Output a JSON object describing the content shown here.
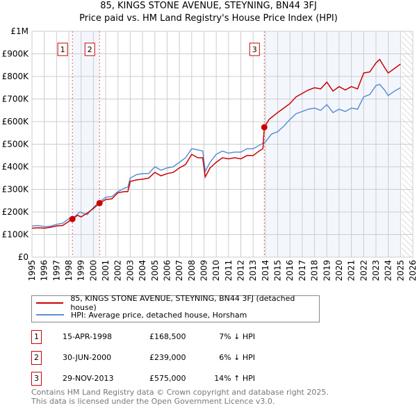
{
  "chart_data": {
    "type": "line",
    "title": "85, KINGS STONE AVENUE, STEYNING, BN44 3FJ",
    "subtitle": "Price paid vs. HM Land Registry's House Price Index (HPI)",
    "xlim": [
      1995,
      2026
    ],
    "ylim": [
      0,
      1000000
    ],
    "x_ticks": [
      "1995",
      "1996",
      "1997",
      "1998",
      "1999",
      "2000",
      "2001",
      "2002",
      "2003",
      "2004",
      "2005",
      "2006",
      "2007",
      "2008",
      "2009",
      "2010",
      "2011",
      "2012",
      "2013",
      "2014",
      "2015",
      "2016",
      "2017",
      "2018",
      "2019",
      "2020",
      "2021",
      "2022",
      "2023",
      "2024",
      "2025",
      "2026"
    ],
    "y_ticks": [
      {
        "v": 0,
        "l": "£0"
      },
      {
        "v": 100000,
        "l": "£100K"
      },
      {
        "v": 200000,
        "l": "£200K"
      },
      {
        "v": 300000,
        "l": "£300K"
      },
      {
        "v": 400000,
        "l": "£400K"
      },
      {
        "v": 500000,
        "l": "£500K"
      },
      {
        "v": 600000,
        "l": "£600K"
      },
      {
        "v": 700000,
        "l": "£700K"
      },
      {
        "v": 800000,
        "l": "£800K"
      },
      {
        "v": 900000,
        "l": "£900K"
      },
      {
        "v": 1000000,
        "l": "£1M"
      }
    ],
    "grid": true,
    "shaded_ranges": [
      [
        1998.29,
        2000.5
      ],
      [
        2013.91,
        2025.0
      ]
    ],
    "hatched_from": 2025.1,
    "series": [
      {
        "name": "85, KINGS STONE AVENUE, STEYNING, BN44 3FJ (detached house)",
        "color": "#cc0000",
        "x": [
          1995,
          1995.5,
          1996,
          1996.5,
          1997,
          1997.5,
          1998,
          1998.29,
          1998.7,
          1999,
          1999.5,
          2000,
          2000.5,
          2001,
          2001.5,
          2002,
          2002.5,
          2002.8,
          2003,
          2003.5,
          2004,
          2004.5,
          2005,
          2005.5,
          2006,
          2006.5,
          2007,
          2007.5,
          2008,
          2008.5,
          2008.9,
          2009.1,
          2009.5,
          2010,
          2010.5,
          2011,
          2011.5,
          2012,
          2012.5,
          2013,
          2013.5,
          2013.8,
          2013.91,
          2014.3,
          2015,
          2015.5,
          2016,
          2016.5,
          2017,
          2017.5,
          2018,
          2018.5,
          2019,
          2019.5,
          2020,
          2020.5,
          2021,
          2021.5,
          2022,
          2022.5,
          2023,
          2023.3,
          2023.7,
          2024,
          2024.5,
          2025
        ],
        "y": [
          128000,
          130000,
          128000,
          132000,
          138000,
          140000,
          158000,
          168500,
          185000,
          178000,
          195000,
          215000,
          239000,
          255000,
          258000,
          285000,
          290000,
          290000,
          335000,
          342000,
          345000,
          350000,
          375000,
          360000,
          370000,
          375000,
          395000,
          410000,
          455000,
          440000,
          440000,
          355000,
          395000,
          420000,
          440000,
          435000,
          440000,
          435000,
          450000,
          450000,
          470000,
          480000,
          575000,
          610000,
          640000,
          660000,
          680000,
          710000,
          725000,
          740000,
          750000,
          745000,
          775000,
          735000,
          755000,
          740000,
          755000,
          745000,
          815000,
          820000,
          860000,
          875000,
          840000,
          815000,
          835000,
          855000
        ]
      },
      {
        "name": "HPI: Average price, detached house, Horsham",
        "color": "#5b8fd4",
        "x": [
          1995,
          1995.5,
          1996,
          1996.5,
          1997,
          1997.5,
          1998,
          1998.5,
          1998.9,
          1999.5,
          2000,
          2000.5,
          2001,
          2001.5,
          2002,
          2002.5,
          2002.8,
          2003,
          2003.5,
          2004,
          2004.5,
          2005,
          2005.5,
          2006,
          2006.5,
          2007,
          2007.5,
          2008,
          2008.5,
          2008.9,
          2009.1,
          2009.5,
          2010,
          2010.5,
          2011,
          2011.5,
          2012,
          2012.5,
          2013,
          2013.5,
          2014,
          2014.5,
          2015,
          2015.5,
          2016,
          2016.5,
          2017,
          2017.5,
          2018,
          2018.5,
          2019,
          2019.5,
          2020,
          2020.5,
          2021,
          2021.5,
          2022,
          2022.5,
          2023,
          2023.3,
          2023.7,
          2024,
          2024.5,
          2025
        ],
        "y": [
          138000,
          140000,
          135000,
          137000,
          145000,
          150000,
          170000,
          180000,
          200000,
          188000,
          220000,
          245000,
          265000,
          268000,
          290000,
          305000,
          310000,
          350000,
          365000,
          370000,
          370000,
          400000,
          385000,
          395000,
          400000,
          420000,
          440000,
          480000,
          475000,
          470000,
          380000,
          420000,
          455000,
          470000,
          460000,
          465000,
          465000,
          480000,
          480000,
          495000,
          510000,
          545000,
          555000,
          580000,
          610000,
          635000,
          645000,
          655000,
          660000,
          650000,
          675000,
          640000,
          655000,
          645000,
          660000,
          655000,
          710000,
          720000,
          760000,
          765000,
          740000,
          715000,
          735000,
          750000
        ]
      }
    ],
    "sales": [
      {
        "label": "1",
        "x": 1998.29,
        "price": 168500
      },
      {
        "label": "2",
        "x": 2000.5,
        "price": 239000
      },
      {
        "label": "3",
        "x": 2013.91,
        "price": 575000
      }
    ]
  },
  "legend": {
    "red": "85, KINGS STONE AVENUE, STEYNING, BN44 3FJ (detached house)",
    "blue": "HPI: Average price, detached house, Horsham"
  },
  "table": [
    {
      "n": "1",
      "date": "15-APR-1998",
      "price": "£168,500",
      "hpi": "7% ↓ HPI"
    },
    {
      "n": "2",
      "date": "30-JUN-2000",
      "price": "£239,000",
      "hpi": "6% ↓ HPI"
    },
    {
      "n": "3",
      "date": "29-NOV-2013",
      "price": "£575,000",
      "hpi": "14% ↑ HPI"
    }
  ],
  "footer": [
    "Contains HM Land Registry data © Crown copyright and database right 2025.",
    "This data is licensed under the Open Government Licence v3.0."
  ]
}
